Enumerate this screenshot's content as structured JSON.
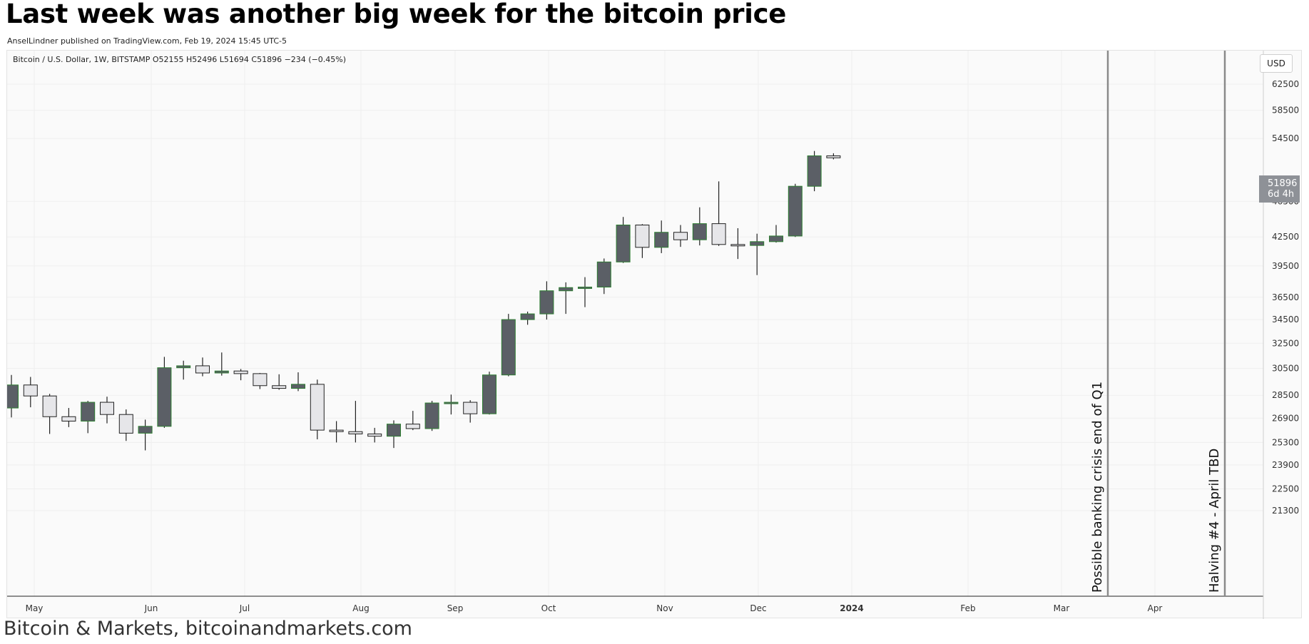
{
  "header": {
    "title": "Last week was another big week for the bitcoin price",
    "subtitle": "AnselLindner published on TradingView.com, Feb 19, 2024 15:45 UTC-5"
  },
  "footer": {
    "text": "Bitcoin & Markets, bitcoinandmarkets.com"
  },
  "colors": {
    "up_fill": "#e6e6e9",
    "down_fill": "#5b5f66",
    "body_border": "#222222",
    "green_edge": "#2e7d32",
    "wick": "#222222",
    "vline": "#8a8a8a",
    "grid": "#efefef",
    "price_tag": "#8e9197"
  },
  "chart_data": {
    "type": "candlestick",
    "legend": "Bitcoin / U.S. Dollar, 1W, BITSTAMP  O52155  H52496  L51694  C51896  −234 (−0.45%)",
    "currency_button": "USD",
    "last_price": "51896",
    "countdown": "6d 4h",
    "scale": "log",
    "y_ticks": [
      "62500",
      "58500",
      "54500",
      "46500",
      "42500",
      "39500",
      "36500",
      "34500",
      "32500",
      "30500",
      "28500",
      "26900",
      "25300",
      "23900",
      "22500",
      "21300"
    ],
    "x_ticks": [
      {
        "label": "May",
        "bold": false
      },
      {
        "label": "Jun",
        "bold": false
      },
      {
        "label": "Jul",
        "bold": false
      },
      {
        "label": "Aug",
        "bold": false
      },
      {
        "label": "Sep",
        "bold": false
      },
      {
        "label": "Oct",
        "bold": false
      },
      {
        "label": "Nov",
        "bold": false
      },
      {
        "label": "Dec",
        "bold": false
      },
      {
        "label": "2024",
        "bold": true
      },
      {
        "label": "Feb",
        "bold": false
      },
      {
        "label": "Mar",
        "bold": false
      },
      {
        "label": "Apr",
        "bold": false
      }
    ],
    "candles": [
      {
        "o": 27600,
        "h": 30000,
        "l": 26950,
        "c": 29250
      },
      {
        "o": 29250,
        "h": 29850,
        "l": 27650,
        "c": 28450
      },
      {
        "o": 28450,
        "h": 28600,
        "l": 25850,
        "c": 27000
      },
      {
        "o": 27000,
        "h": 27600,
        "l": 26300,
        "c": 26700
      },
      {
        "o": 26700,
        "h": 28100,
        "l": 25900,
        "c": 28000
      },
      {
        "o": 28000,
        "h": 28400,
        "l": 26550,
        "c": 27150
      },
      {
        "o": 27150,
        "h": 27500,
        "l": 25400,
        "c": 25900
      },
      {
        "o": 25900,
        "h": 26800,
        "l": 24800,
        "c": 26350
      },
      {
        "o": 26350,
        "h": 31400,
        "l": 26250,
        "c": 30550
      },
      {
        "o": 30550,
        "h": 31100,
        "l": 29650,
        "c": 30700
      },
      {
        "o": 30700,
        "h": 31350,
        "l": 29900,
        "c": 30150
      },
      {
        "o": 30150,
        "h": 31750,
        "l": 29950,
        "c": 30300
      },
      {
        "o": 30300,
        "h": 30450,
        "l": 29600,
        "c": 30100
      },
      {
        "o": 30100,
        "h": 30150,
        "l": 28950,
        "c": 29200
      },
      {
        "o": 29200,
        "h": 30050,
        "l": 28900,
        "c": 29000
      },
      {
        "o": 29000,
        "h": 30200,
        "l": 28800,
        "c": 29300
      },
      {
        "o": 29300,
        "h": 29650,
        "l": 25500,
        "c": 26100
      },
      {
        "o": 26100,
        "h": 26700,
        "l": 25300,
        "c": 26000
      },
      {
        "o": 26000,
        "h": 28100,
        "l": 25300,
        "c": 25850
      },
      {
        "o": 25850,
        "h": 26250,
        "l": 25300,
        "c": 25700
      },
      {
        "o": 25700,
        "h": 26750,
        "l": 24950,
        "c": 26500
      },
      {
        "o": 26500,
        "h": 27400,
        "l": 26100,
        "c": 26200
      },
      {
        "o": 26200,
        "h": 28100,
        "l": 26050,
        "c": 27950
      },
      {
        "o": 27950,
        "h": 28550,
        "l": 27150,
        "c": 28000
      },
      {
        "o": 28000,
        "h": 28150,
        "l": 26600,
        "c": 27200
      },
      {
        "o": 27200,
        "h": 30250,
        "l": 27150,
        "c": 30000
      },
      {
        "o": 30000,
        "h": 35000,
        "l": 29900,
        "c": 34500
      },
      {
        "o": 34500,
        "h": 35200,
        "l": 34050,
        "c": 35000
      },
      {
        "o": 35000,
        "h": 38000,
        "l": 34500,
        "c": 37100
      },
      {
        "o": 37100,
        "h": 37900,
        "l": 35000,
        "c": 37400
      },
      {
        "o": 37400,
        "h": 38400,
        "l": 35600,
        "c": 37450
      },
      {
        "o": 37450,
        "h": 40250,
        "l": 36800,
        "c": 39900
      },
      {
        "o": 39900,
        "h": 44700,
        "l": 39800,
        "c": 43800
      },
      {
        "o": 43800,
        "h": 43900,
        "l": 40300,
        "c": 41400
      },
      {
        "o": 41400,
        "h": 44300,
        "l": 40800,
        "c": 43000
      },
      {
        "o": 43000,
        "h": 43800,
        "l": 41450,
        "c": 42200
      },
      {
        "o": 42200,
        "h": 45800,
        "l": 41600,
        "c": 43950
      },
      {
        "o": 43950,
        "h": 48900,
        "l": 41550,
        "c": 41700
      },
      {
        "o": 41700,
        "h": 43450,
        "l": 40200,
        "c": 41600
      },
      {
        "o": 41600,
        "h": 42850,
        "l": 38600,
        "c": 42000
      },
      {
        "o": 42000,
        "h": 43800,
        "l": 41900,
        "c": 42600
      },
      {
        "o": 42600,
        "h": 48600,
        "l": 42500,
        "c": 48300
      },
      {
        "o": 48300,
        "h": 52800,
        "l": 47700,
        "c": 52155
      },
      {
        "o": 52155,
        "h": 52496,
        "l": 51694,
        "c": 51896
      }
    ],
    "annotations": [
      {
        "text": "Possible banking crisis end of Q1"
      },
      {
        "text": "Halving #4  -  April TBD"
      }
    ]
  }
}
